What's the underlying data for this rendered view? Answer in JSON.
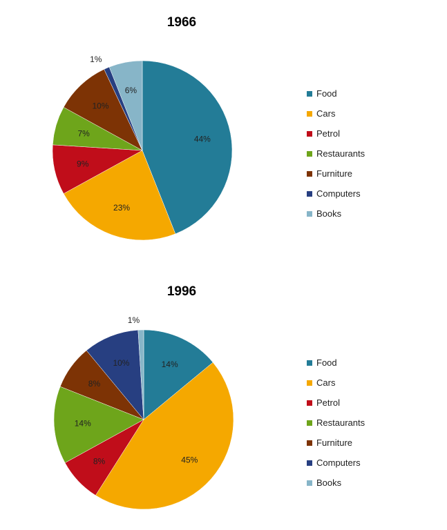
{
  "legend_colors": [
    "#237c97",
    "#f5a800",
    "#c00d1a",
    "#6ea51b",
    "#7d3305",
    "#273f81",
    "#87b5c8"
  ],
  "chart_data": [
    {
      "type": "pie",
      "title": "1966",
      "categories": [
        "Food",
        "Cars",
        "Petrol",
        "Restaurants",
        "Furniture",
        "Computers",
        "Books"
      ],
      "values": [
        44,
        23,
        9,
        7,
        10,
        1,
        6
      ],
      "labels": [
        "44%",
        "23%",
        "9%",
        "7%",
        "10%",
        "1%",
        "6%"
      ],
      "legend": "right"
    },
    {
      "type": "pie",
      "title": "1996",
      "categories": [
        "Food",
        "Cars",
        "Petrol",
        "Restaurants",
        "Furniture",
        "Computers",
        "Books"
      ],
      "values": [
        14,
        45,
        8,
        14,
        8,
        10,
        1
      ],
      "labels": [
        "14%",
        "45%",
        "8%",
        "14%",
        "8%",
        "10%",
        "1%"
      ],
      "legend": "right"
    }
  ]
}
